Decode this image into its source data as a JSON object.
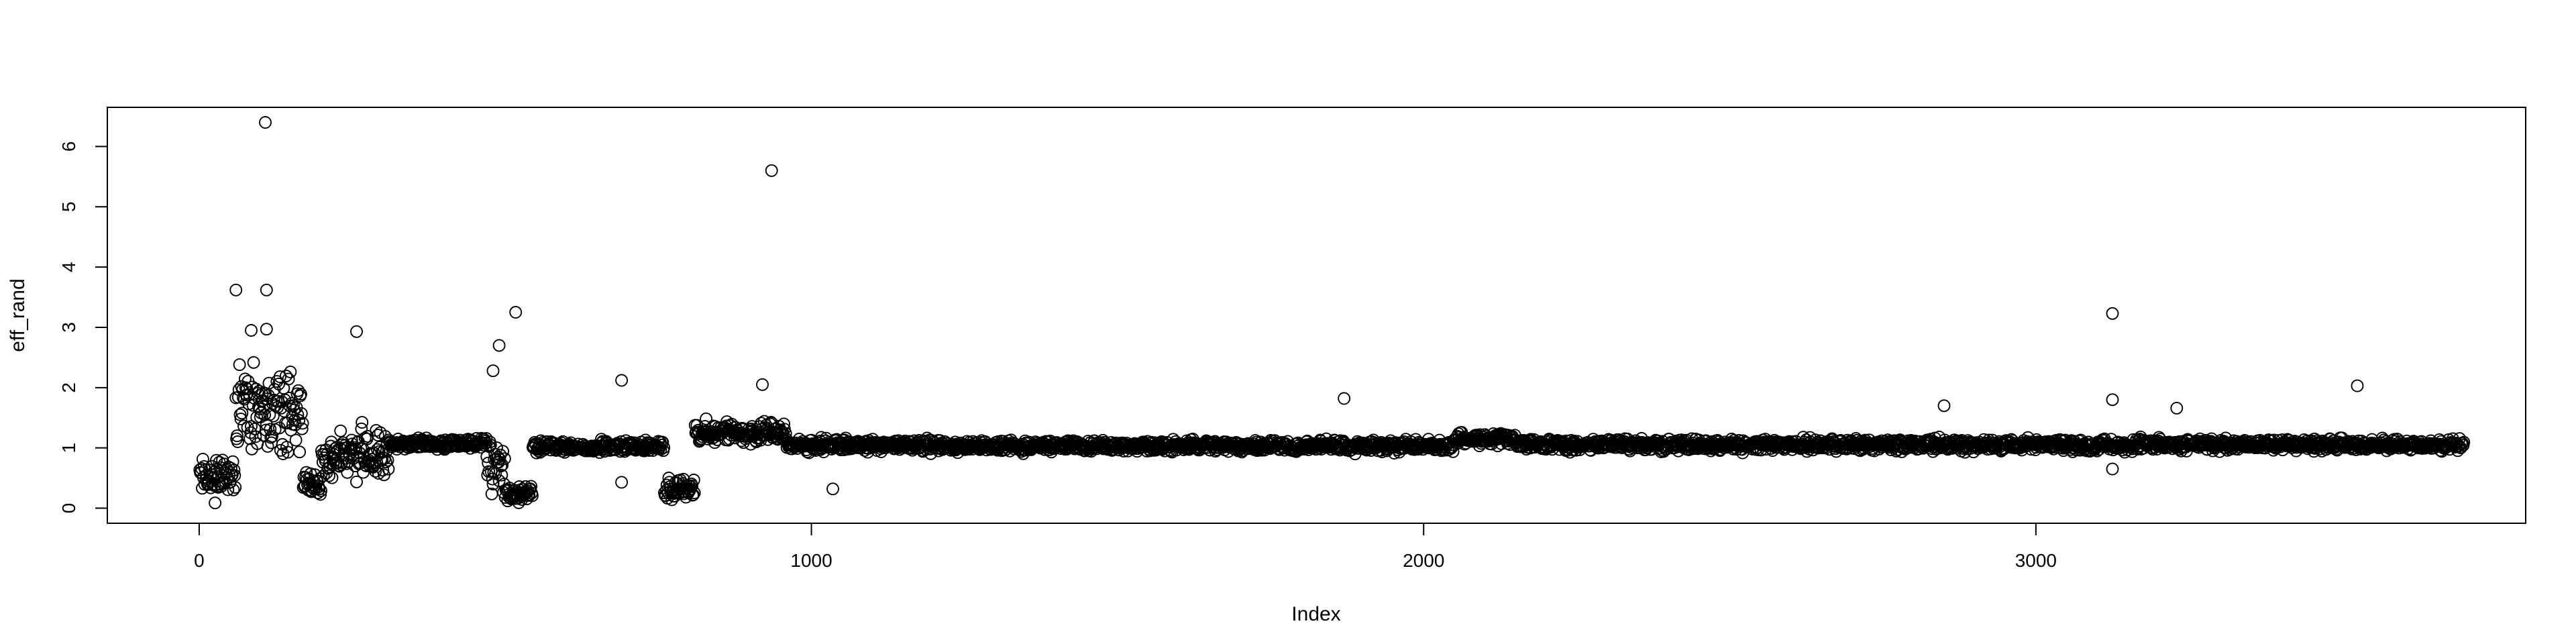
{
  "chart_data": {
    "type": "scatter",
    "title": "",
    "xlabel": "Index",
    "ylabel": "eff_rand",
    "xlim": [
      -150,
      3800
    ],
    "ylim": [
      -0.25,
      6.65
    ],
    "x_ticks": [
      0,
      1000,
      2000,
      3000
    ],
    "y_ticks": [
      0,
      1,
      2,
      3,
      4,
      5,
      6
    ],
    "x_tick_labels": [
      "0",
      "1000",
      "2000",
      "3000"
    ],
    "y_tick_labels": [
      "0",
      "1",
      "2",
      "3",
      "4",
      "5",
      "6"
    ],
    "grid": false,
    "legend": "none",
    "marker": "open-circle",
    "marker_color": "#000000",
    "n_points": 3700,
    "segments": [
      {
        "from": 1,
        "to": 60,
        "center": 0.5,
        "spread": 0.45
      },
      {
        "from": 60,
        "to": 170,
        "center": 1.6,
        "spread": 0.95
      },
      {
        "from": 170,
        "to": 200,
        "center": 0.4,
        "spread": 0.35
      },
      {
        "from": 200,
        "to": 310,
        "center": 0.9,
        "spread": 0.55
      },
      {
        "from": 310,
        "to": 470,
        "center": 1.07,
        "spread": 0.12
      },
      {
        "from": 470,
        "to": 500,
        "center": 0.7,
        "spread": 0.6
      },
      {
        "from": 500,
        "to": 545,
        "center": 0.22,
        "spread": 0.18
      },
      {
        "from": 545,
        "to": 760,
        "center": 1.02,
        "spread": 0.14
      },
      {
        "from": 760,
        "to": 810,
        "center": 0.3,
        "spread": 0.25
      },
      {
        "from": 810,
        "to": 960,
        "center": 1.25,
        "spread": 0.25
      },
      {
        "from": 960,
        "to": 1200,
        "center": 1.05,
        "spread": 0.15
      },
      {
        "from": 1200,
        "to": 2050,
        "center": 1.03,
        "spread": 0.14
      },
      {
        "from": 2050,
        "to": 2150,
        "center": 1.15,
        "spread": 0.15
      },
      {
        "from": 2150,
        "to": 3700,
        "center": 1.05,
        "spread": 0.14
      }
    ],
    "outliers": [
      {
        "x": 108,
        "y": 6.4
      },
      {
        "x": 110,
        "y": 3.62
      },
      {
        "x": 60,
        "y": 3.62
      },
      {
        "x": 110,
        "y": 2.97
      },
      {
        "x": 85,
        "y": 2.95
      },
      {
        "x": 257,
        "y": 2.93
      },
      {
        "x": 517,
        "y": 3.25
      },
      {
        "x": 490,
        "y": 2.7
      },
      {
        "x": 480,
        "y": 2.28
      },
      {
        "x": 935,
        "y": 5.6
      },
      {
        "x": 690,
        "y": 2.12
      },
      {
        "x": 920,
        "y": 2.05
      },
      {
        "x": 1870,
        "y": 1.82
      },
      {
        "x": 3125,
        "y": 3.23
      },
      {
        "x": 3125,
        "y": 1.8
      },
      {
        "x": 3525,
        "y": 2.03
      },
      {
        "x": 2850,
        "y": 1.7
      },
      {
        "x": 3230,
        "y": 1.66
      },
      {
        "x": 1035,
        "y": 0.32
      },
      {
        "x": 3125,
        "y": 0.65
      },
      {
        "x": 690,
        "y": 0.43
      }
    ]
  }
}
